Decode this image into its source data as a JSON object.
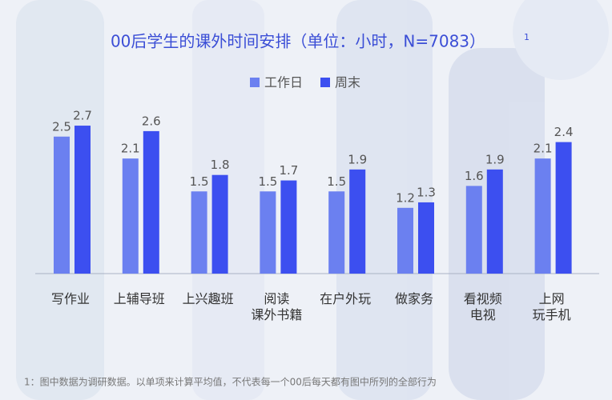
{
  "chart_data": {
    "type": "bar",
    "title": "00后学生的课外时间安排（单位：小时，N=7083）",
    "title_note_marker": "1",
    "categories": [
      "写作业",
      "上辅导班",
      "上兴趣班",
      "阅读\n课外书籍",
      "在户外玩",
      "做家务",
      "看视频\n电视",
      "上网\n玩手机"
    ],
    "series": [
      {
        "name": "工作日",
        "color": "#6b80f0",
        "values": [
          2.5,
          2.1,
          1.5,
          1.5,
          1.5,
          1.2,
          1.6,
          2.1
        ]
      },
      {
        "name": "周末",
        "color": "#3c4ff0",
        "values": [
          2.7,
          2.6,
          1.8,
          1.7,
          1.9,
          1.3,
          1.9,
          2.4
        ]
      }
    ],
    "footnote": "1：图中数据为调研数据。以单项来计算平均值，不代表每一个00后每天都有图中所列的全部行为"
  }
}
